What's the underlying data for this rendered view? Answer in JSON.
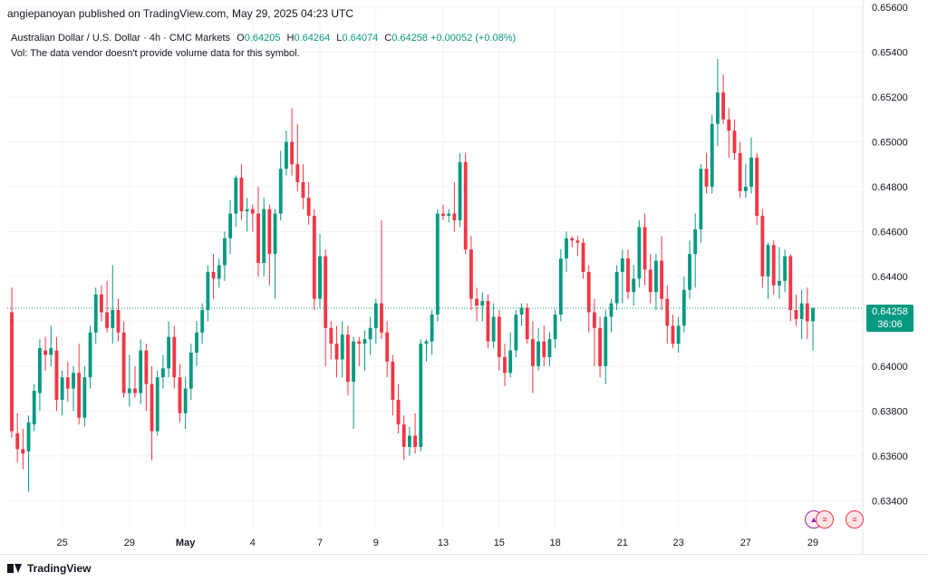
{
  "header": {
    "publisher_line": "angiepanoyan published on TradingView.com, May 29, 2025 04:23 UTC"
  },
  "legend": {
    "symbol": "Australian Dollar / U.S. Dollar · 4h · CMC Markets",
    "o_key": "O",
    "o_val": "0.64205",
    "h_key": "H",
    "h_val": "0.64264",
    "l_key": "L",
    "l_val": "0.64074",
    "c_key": "C",
    "c_val": "0.64258",
    "change": "+0.00052 (+0.08%)",
    "vol_note": "Vol: The data vendor doesn't provide volume data for this symbol."
  },
  "last_price": {
    "price": "0.64258",
    "countdown": "36:06"
  },
  "footer": {
    "brand": "TradingView"
  },
  "colors": {
    "up": "#089981",
    "down": "#f23645",
    "grid": "#f0f3fa",
    "text": "#131722"
  },
  "chart_data": {
    "type": "candlestick",
    "title": "Australian Dollar / U.S. Dollar · 4h · CMC Markets",
    "y_ticks": [
      "0.63400",
      "0.63600",
      "0.63800",
      "0.64000",
      "0.64200",
      "0.64400",
      "0.64600",
      "0.64800",
      "0.65000",
      "0.65200",
      "0.65400",
      "0.65600"
    ],
    "ylim": [
      0.6328,
      0.656
    ],
    "x_ticks": [
      "25",
      "29",
      "May",
      "4",
      "7",
      "9",
      "13",
      "15",
      "18",
      "21",
      "23",
      "27",
      "29"
    ],
    "grid": true,
    "last_close": 0.64258,
    "candles": [
      {
        "o": 0.6424,
        "h": 0.6435,
        "l": 0.6368,
        "c": 0.6371
      },
      {
        "o": 0.637,
        "h": 0.6379,
        "l": 0.6357,
        "c": 0.6363
      },
      {
        "o": 0.6363,
        "h": 0.6372,
        "l": 0.6354,
        "c": 0.6361
      },
      {
        "o": 0.6362,
        "h": 0.6378,
        "l": 0.6344,
        "c": 0.6375
      },
      {
        "o": 0.6374,
        "h": 0.6392,
        "l": 0.6371,
        "c": 0.6389
      },
      {
        "o": 0.6388,
        "h": 0.6412,
        "l": 0.638,
        "c": 0.6408
      },
      {
        "o": 0.6407,
        "h": 0.6413,
        "l": 0.6398,
        "c": 0.6405
      },
      {
        "o": 0.6405,
        "h": 0.6418,
        "l": 0.64,
        "c": 0.6408
      },
      {
        "o": 0.6407,
        "h": 0.6413,
        "l": 0.638,
        "c": 0.6385
      },
      {
        "o": 0.6385,
        "h": 0.6398,
        "l": 0.6378,
        "c": 0.6395
      },
      {
        "o": 0.6395,
        "h": 0.6402,
        "l": 0.6384,
        "c": 0.639
      },
      {
        "o": 0.639,
        "h": 0.64,
        "l": 0.638,
        "c": 0.6397
      },
      {
        "o": 0.6397,
        "h": 0.641,
        "l": 0.6374,
        "c": 0.6377
      },
      {
        "o": 0.6377,
        "h": 0.64,
        "l": 0.6373,
        "c": 0.6395
      },
      {
        "o": 0.6395,
        "h": 0.6418,
        "l": 0.639,
        "c": 0.6415
      },
      {
        "o": 0.6415,
        "h": 0.6435,
        "l": 0.641,
        "c": 0.6432
      },
      {
        "o": 0.6432,
        "h": 0.6436,
        "l": 0.642,
        "c": 0.6424
      },
      {
        "o": 0.6424,
        "h": 0.6438,
        "l": 0.6415,
        "c": 0.6417
      },
      {
        "o": 0.6417,
        "h": 0.6445,
        "l": 0.641,
        "c": 0.6425
      },
      {
        "o": 0.6425,
        "h": 0.643,
        "l": 0.6411,
        "c": 0.6415
      },
      {
        "o": 0.6415,
        "h": 0.642,
        "l": 0.6386,
        "c": 0.6388
      },
      {
        "o": 0.6388,
        "h": 0.6405,
        "l": 0.6382,
        "c": 0.639
      },
      {
        "o": 0.639,
        "h": 0.64,
        "l": 0.6386,
        "c": 0.6388
      },
      {
        "o": 0.6388,
        "h": 0.6412,
        "l": 0.6383,
        "c": 0.6407
      },
      {
        "o": 0.6407,
        "h": 0.641,
        "l": 0.638,
        "c": 0.6392
      },
      {
        "o": 0.6392,
        "h": 0.64,
        "l": 0.6358,
        "c": 0.6371
      },
      {
        "o": 0.6371,
        "h": 0.6398,
        "l": 0.6369,
        "c": 0.6395
      },
      {
        "o": 0.6395,
        "h": 0.6405,
        "l": 0.639,
        "c": 0.6399
      },
      {
        "o": 0.6399,
        "h": 0.642,
        "l": 0.6395,
        "c": 0.6413
      },
      {
        "o": 0.6413,
        "h": 0.6418,
        "l": 0.639,
        "c": 0.6395
      },
      {
        "o": 0.6395,
        "h": 0.6401,
        "l": 0.6375,
        "c": 0.6379
      },
      {
        "o": 0.6379,
        "h": 0.6395,
        "l": 0.6372,
        "c": 0.639
      },
      {
        "o": 0.639,
        "h": 0.641,
        "l": 0.6385,
        "c": 0.6406
      },
      {
        "o": 0.6406,
        "h": 0.642,
        "l": 0.64,
        "c": 0.6415
      },
      {
        "o": 0.6415,
        "h": 0.6428,
        "l": 0.641,
        "c": 0.6425
      },
      {
        "o": 0.6425,
        "h": 0.6445,
        "l": 0.642,
        "c": 0.6442
      },
      {
        "o": 0.6442,
        "h": 0.645,
        "l": 0.643,
        "c": 0.6439
      },
      {
        "o": 0.6439,
        "h": 0.6448,
        "l": 0.6435,
        "c": 0.6445
      },
      {
        "o": 0.6445,
        "h": 0.646,
        "l": 0.6438,
        "c": 0.6457
      },
      {
        "o": 0.6457,
        "h": 0.6474,
        "l": 0.645,
        "c": 0.6468
      },
      {
        "o": 0.6468,
        "h": 0.6485,
        "l": 0.6462,
        "c": 0.6484
      },
      {
        "o": 0.6484,
        "h": 0.649,
        "l": 0.6465,
        "c": 0.6469
      },
      {
        "o": 0.6469,
        "h": 0.6475,
        "l": 0.646,
        "c": 0.647
      },
      {
        "o": 0.647,
        "h": 0.6472,
        "l": 0.646,
        "c": 0.6468
      },
      {
        "o": 0.6468,
        "h": 0.648,
        "l": 0.644,
        "c": 0.6446
      },
      {
        "o": 0.6446,
        "h": 0.6475,
        "l": 0.644,
        "c": 0.647
      },
      {
        "o": 0.647,
        "h": 0.6472,
        "l": 0.6436,
        "c": 0.645
      },
      {
        "o": 0.645,
        "h": 0.647,
        "l": 0.643,
        "c": 0.6468
      },
      {
        "o": 0.6468,
        "h": 0.6496,
        "l": 0.6465,
        "c": 0.6488
      },
      {
        "o": 0.6488,
        "h": 0.6505,
        "l": 0.6485,
        "c": 0.65
      },
      {
        "o": 0.65,
        "h": 0.6515,
        "l": 0.6485,
        "c": 0.649
      },
      {
        "o": 0.649,
        "h": 0.6508,
        "l": 0.6478,
        "c": 0.6482
      },
      {
        "o": 0.6482,
        "h": 0.649,
        "l": 0.647,
        "c": 0.6475
      },
      {
        "o": 0.6475,
        "h": 0.6482,
        "l": 0.6463,
        "c": 0.6467
      },
      {
        "o": 0.6467,
        "h": 0.647,
        "l": 0.6425,
        "c": 0.643
      },
      {
        "o": 0.643,
        "h": 0.6459,
        "l": 0.6426,
        "c": 0.6449
      },
      {
        "o": 0.6449,
        "h": 0.6452,
        "l": 0.64,
        "c": 0.6417
      },
      {
        "o": 0.6417,
        "h": 0.642,
        "l": 0.6403,
        "c": 0.641
      },
      {
        "o": 0.641,
        "h": 0.6418,
        "l": 0.6395,
        "c": 0.6403
      },
      {
        "o": 0.6403,
        "h": 0.642,
        "l": 0.6395,
        "c": 0.6414
      },
      {
        "o": 0.6414,
        "h": 0.6418,
        "l": 0.6387,
        "c": 0.6393
      },
      {
        "o": 0.6393,
        "h": 0.6413,
        "l": 0.6372,
        "c": 0.6411
      },
      {
        "o": 0.6411,
        "h": 0.6413,
        "l": 0.64,
        "c": 0.641
      },
      {
        "o": 0.641,
        "h": 0.6416,
        "l": 0.6398,
        "c": 0.6412
      },
      {
        "o": 0.6412,
        "h": 0.6422,
        "l": 0.6405,
        "c": 0.6417
      },
      {
        "o": 0.6417,
        "h": 0.643,
        "l": 0.641,
        "c": 0.6428
      },
      {
        "o": 0.6428,
        "h": 0.6465,
        "l": 0.6412,
        "c": 0.6415
      },
      {
        "o": 0.6415,
        "h": 0.642,
        "l": 0.6395,
        "c": 0.6402
      },
      {
        "o": 0.6402,
        "h": 0.6405,
        "l": 0.6378,
        "c": 0.6385
      },
      {
        "o": 0.6385,
        "h": 0.6392,
        "l": 0.637,
        "c": 0.6374
      },
      {
        "o": 0.6374,
        "h": 0.6378,
        "l": 0.6358,
        "c": 0.6364
      },
      {
        "o": 0.6364,
        "h": 0.6373,
        "l": 0.636,
        "c": 0.6369
      },
      {
        "o": 0.6369,
        "h": 0.6379,
        "l": 0.6361,
        "c": 0.6364
      },
      {
        "o": 0.6364,
        "h": 0.6412,
        "l": 0.6362,
        "c": 0.641
      },
      {
        "o": 0.641,
        "h": 0.6412,
        "l": 0.6402,
        "c": 0.6411
      },
      {
        "o": 0.6411,
        "h": 0.6425,
        "l": 0.6405,
        "c": 0.6423
      },
      {
        "o": 0.6423,
        "h": 0.647,
        "l": 0.642,
        "c": 0.6468
      },
      {
        "o": 0.6468,
        "h": 0.6472,
        "l": 0.6465,
        "c": 0.6467
      },
      {
        "o": 0.6467,
        "h": 0.647,
        "l": 0.6464,
        "c": 0.6468
      },
      {
        "o": 0.6468,
        "h": 0.6482,
        "l": 0.646,
        "c": 0.6465
      },
      {
        "o": 0.6465,
        "h": 0.6495,
        "l": 0.6462,
        "c": 0.6491
      },
      {
        "o": 0.6491,
        "h": 0.6495,
        "l": 0.645,
        "c": 0.6452
      },
      {
        "o": 0.6452,
        "h": 0.6458,
        "l": 0.6425,
        "c": 0.643
      },
      {
        "o": 0.643,
        "h": 0.6435,
        "l": 0.642,
        "c": 0.6427
      },
      {
        "o": 0.6427,
        "h": 0.6433,
        "l": 0.642,
        "c": 0.6429
      },
      {
        "o": 0.6429,
        "h": 0.6432,
        "l": 0.6408,
        "c": 0.6411
      },
      {
        "o": 0.6411,
        "h": 0.6428,
        "l": 0.6408,
        "c": 0.6422
      },
      {
        "o": 0.6422,
        "h": 0.6425,
        "l": 0.6398,
        "c": 0.6404
      },
      {
        "o": 0.6404,
        "h": 0.641,
        "l": 0.6391,
        "c": 0.6397
      },
      {
        "o": 0.6397,
        "h": 0.6415,
        "l": 0.6395,
        "c": 0.6407
      },
      {
        "o": 0.6407,
        "h": 0.6425,
        "l": 0.6404,
        "c": 0.6423
      },
      {
        "o": 0.6423,
        "h": 0.6428,
        "l": 0.6418,
        "c": 0.6426
      },
      {
        "o": 0.6426,
        "h": 0.6428,
        "l": 0.641,
        "c": 0.6412
      },
      {
        "o": 0.6412,
        "h": 0.642,
        "l": 0.6388,
        "c": 0.64
      },
      {
        "o": 0.64,
        "h": 0.6417,
        "l": 0.6398,
        "c": 0.6411
      },
      {
        "o": 0.6411,
        "h": 0.6418,
        "l": 0.64,
        "c": 0.6404
      },
      {
        "o": 0.6404,
        "h": 0.6415,
        "l": 0.64,
        "c": 0.6412
      },
      {
        "o": 0.6412,
        "h": 0.6425,
        "l": 0.6408,
        "c": 0.6423
      },
      {
        "o": 0.6423,
        "h": 0.6452,
        "l": 0.642,
        "c": 0.6448
      },
      {
        "o": 0.6448,
        "h": 0.646,
        "l": 0.6442,
        "c": 0.6457
      },
      {
        "o": 0.6457,
        "h": 0.6458,
        "l": 0.6453,
        "c": 0.6456
      },
      {
        "o": 0.6456,
        "h": 0.6458,
        "l": 0.6449,
        "c": 0.6455
      },
      {
        "o": 0.6455,
        "h": 0.6457,
        "l": 0.6439,
        "c": 0.6442
      },
      {
        "o": 0.6442,
        "h": 0.6445,
        "l": 0.6415,
        "c": 0.6424
      },
      {
        "o": 0.6424,
        "h": 0.643,
        "l": 0.64,
        "c": 0.6417
      },
      {
        "o": 0.6417,
        "h": 0.6422,
        "l": 0.6395,
        "c": 0.64
      },
      {
        "o": 0.64,
        "h": 0.6425,
        "l": 0.6392,
        "c": 0.6422
      },
      {
        "o": 0.6422,
        "h": 0.643,
        "l": 0.6415,
        "c": 0.6428
      },
      {
        "o": 0.6428,
        "h": 0.6445,
        "l": 0.6425,
        "c": 0.6442
      },
      {
        "o": 0.6442,
        "h": 0.6452,
        "l": 0.6428,
        "c": 0.6448
      },
      {
        "o": 0.6448,
        "h": 0.6452,
        "l": 0.643,
        "c": 0.6433
      },
      {
        "o": 0.6433,
        "h": 0.6445,
        "l": 0.6427,
        "c": 0.6439
      },
      {
        "o": 0.6439,
        "h": 0.6465,
        "l": 0.6435,
        "c": 0.6462
      },
      {
        "o": 0.6462,
        "h": 0.6468,
        "l": 0.6436,
        "c": 0.6443
      },
      {
        "o": 0.6443,
        "h": 0.645,
        "l": 0.6428,
        "c": 0.6433
      },
      {
        "o": 0.6433,
        "h": 0.645,
        "l": 0.6425,
        "c": 0.6447
      },
      {
        "o": 0.6447,
        "h": 0.6458,
        "l": 0.6425,
        "c": 0.643
      },
      {
        "o": 0.643,
        "h": 0.6436,
        "l": 0.641,
        "c": 0.6418
      },
      {
        "o": 0.6418,
        "h": 0.6423,
        "l": 0.6408,
        "c": 0.641
      },
      {
        "o": 0.641,
        "h": 0.6422,
        "l": 0.6406,
        "c": 0.6418
      },
      {
        "o": 0.6418,
        "h": 0.644,
        "l": 0.6415,
        "c": 0.6434
      },
      {
        "o": 0.6434,
        "h": 0.6456,
        "l": 0.643,
        "c": 0.645
      },
      {
        "o": 0.645,
        "h": 0.6468,
        "l": 0.6435,
        "c": 0.6461
      },
      {
        "o": 0.6461,
        "h": 0.649,
        "l": 0.6455,
        "c": 0.6488
      },
      {
        "o": 0.6488,
        "h": 0.6495,
        "l": 0.6477,
        "c": 0.648
      },
      {
        "o": 0.648,
        "h": 0.6512,
        "l": 0.6477,
        "c": 0.6508
      },
      {
        "o": 0.6508,
        "h": 0.6537,
        "l": 0.6498,
        "c": 0.6522
      },
      {
        "o": 0.6522,
        "h": 0.653,
        "l": 0.6508,
        "c": 0.651
      },
      {
        "o": 0.651,
        "h": 0.6515,
        "l": 0.6493,
        "c": 0.6505
      },
      {
        "o": 0.6505,
        "h": 0.651,
        "l": 0.6492,
        "c": 0.6495
      },
      {
        "o": 0.6495,
        "h": 0.65,
        "l": 0.6475,
        "c": 0.6478
      },
      {
        "o": 0.6478,
        "h": 0.649,
        "l": 0.6475,
        "c": 0.648
      },
      {
        "o": 0.648,
        "h": 0.6502,
        "l": 0.6477,
        "c": 0.6493
      },
      {
        "o": 0.6493,
        "h": 0.6495,
        "l": 0.6463,
        "c": 0.6467
      },
      {
        "o": 0.6467,
        "h": 0.647,
        "l": 0.6435,
        "c": 0.644
      },
      {
        "o": 0.644,
        "h": 0.6455,
        "l": 0.643,
        "c": 0.6454
      },
      {
        "o": 0.6454,
        "h": 0.6456,
        "l": 0.6432,
        "c": 0.6436
      },
      {
        "o": 0.6436,
        "h": 0.6453,
        "l": 0.643,
        "c": 0.6438
      },
      {
        "o": 0.6438,
        "h": 0.6452,
        "l": 0.6433,
        "c": 0.6449
      },
      {
        "o": 0.6449,
        "h": 0.645,
        "l": 0.642,
        "c": 0.6425
      },
      {
        "o": 0.6425,
        "h": 0.6432,
        "l": 0.6418,
        "c": 0.6421
      },
      {
        "o": 0.6421,
        "h": 0.6434,
        "l": 0.6412,
        "c": 0.6428
      },
      {
        "o": 0.6428,
        "h": 0.6435,
        "l": 0.6412,
        "c": 0.642
      },
      {
        "o": 0.642,
        "h": 0.6426,
        "l": 0.6407,
        "c": 0.6426
      }
    ]
  }
}
